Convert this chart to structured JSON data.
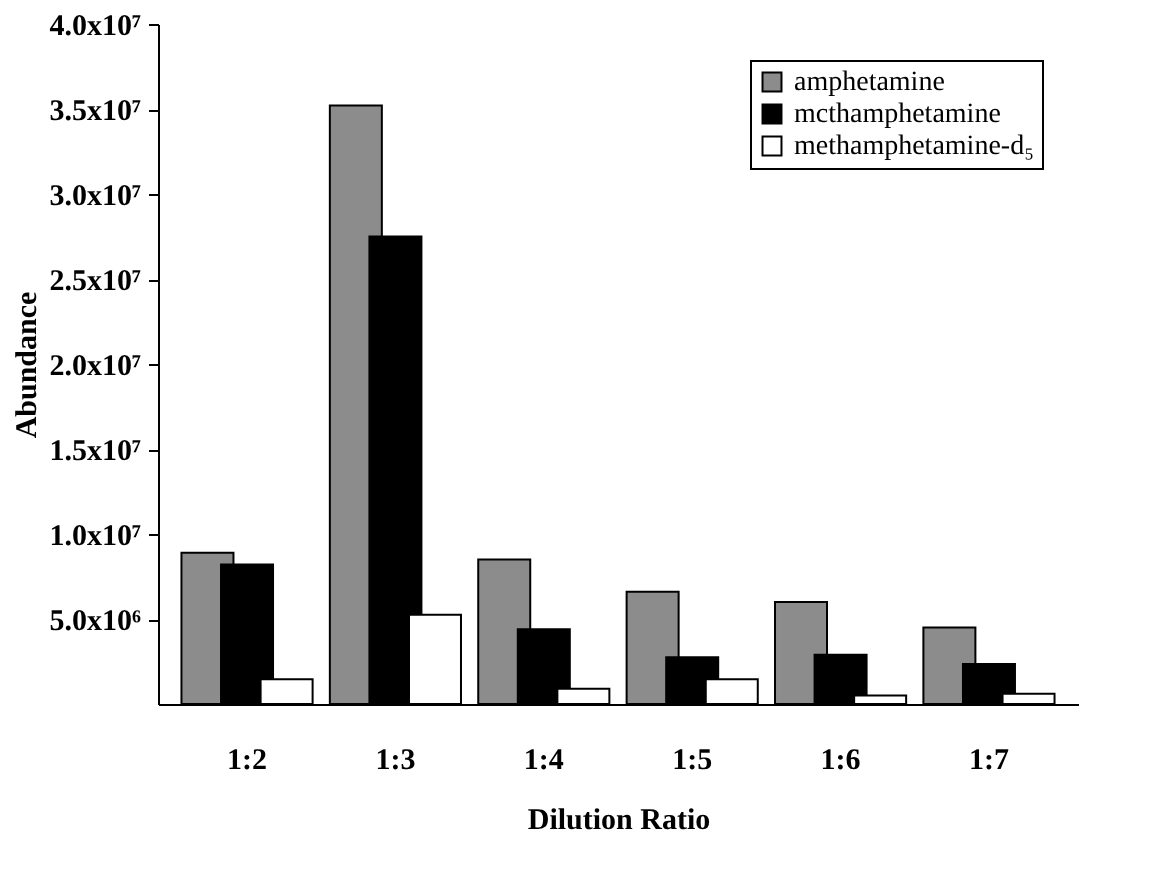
{
  "chart_data": {
    "type": "bar",
    "xlabel": "Dilution Ratio",
    "ylabel": "Abundance",
    "categories": [
      "1:2",
      "1:3",
      "1:4",
      "1:5",
      "1:6",
      "1:7"
    ],
    "series": [
      {
        "name": "amphetamine",
        "color": "#8c8c8c",
        "values": [
          8900000,
          35200000,
          8500000,
          6600000,
          6000000,
          4500000
        ]
      },
      {
        "name": "mcthamphetamine",
        "color": "#000000",
        "values": [
          8200000,
          27500000,
          4400000,
          2750000,
          2900000,
          2350000
        ]
      },
      {
        "name": "methamphetamine-d₅",
        "color": "#ffffff",
        "values": [
          1450000,
          5250000,
          900000,
          1450000,
          500000,
          600000
        ]
      }
    ],
    "ylim": [
      0,
      40000000
    ],
    "yticks": [
      {
        "value": 5000000,
        "label": "5.0x10⁶"
      },
      {
        "value": 10000000,
        "label": "1.0x10⁷"
      },
      {
        "value": 15000000,
        "label": "1.5x10⁷"
      },
      {
        "value": 20000000,
        "label": "2.0x10⁷"
      },
      {
        "value": 25000000,
        "label": "2.5x10⁷"
      },
      {
        "value": 30000000,
        "label": "3.0x10⁷"
      },
      {
        "value": 35000000,
        "label": "3.5x10⁷"
      },
      {
        "value": 40000000,
        "label": "4.0x10⁷"
      }
    ],
    "grid": false,
    "legend": "top right"
  }
}
